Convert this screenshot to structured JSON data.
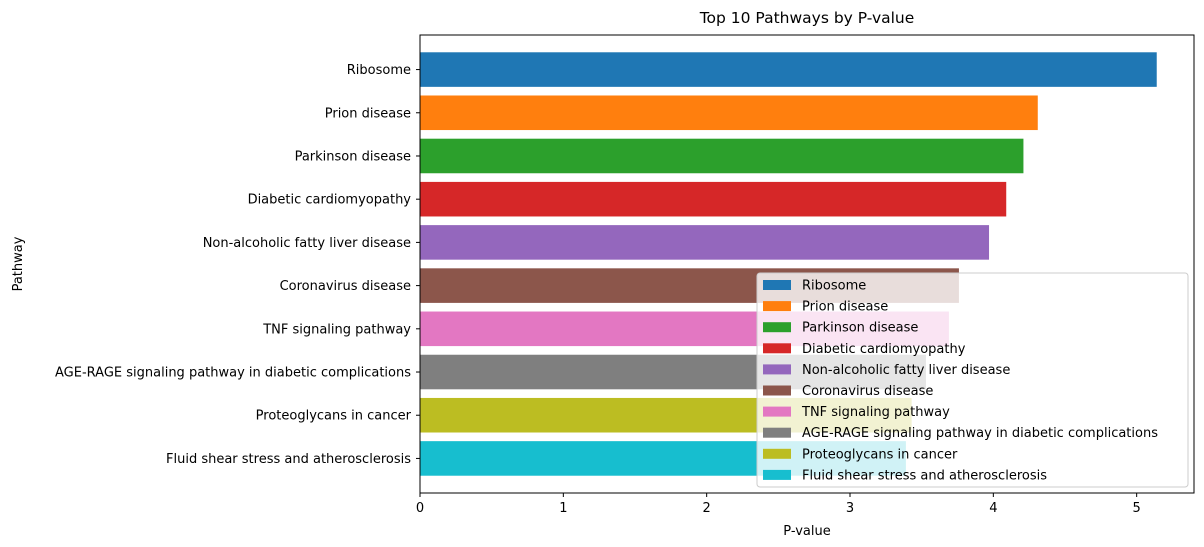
{
  "chart_data": {
    "type": "bar",
    "orientation": "horizontal",
    "title": "Top 10 Pathways by P-value",
    "xlabel": "P-value",
    "ylabel": "Pathway",
    "xlim": [
      0,
      5.4
    ],
    "xticks": [
      0,
      1,
      2,
      3,
      4,
      5
    ],
    "grid": false,
    "legend_position": "lower-right",
    "categories": [
      "Ribosome",
      "Prion disease",
      "Parkinson disease",
      "Diabetic cardiomyopathy",
      "Non-alcoholic fatty liver disease",
      "Coronavirus disease",
      "TNF signaling pathway",
      "AGE-RAGE signaling pathway in diabetic complications",
      "Proteoglycans in cancer",
      "Fluid shear stress and atherosclerosis"
    ],
    "values": [
      5.14,
      4.31,
      4.21,
      4.09,
      3.97,
      3.76,
      3.69,
      3.53,
      3.43,
      3.39
    ],
    "colors": [
      "#1f77b4",
      "#ff7f0e",
      "#2ca02c",
      "#d62728",
      "#9467bd",
      "#8c564b",
      "#e377c2",
      "#7f7f7f",
      "#bcbd22",
      "#17becf"
    ]
  }
}
